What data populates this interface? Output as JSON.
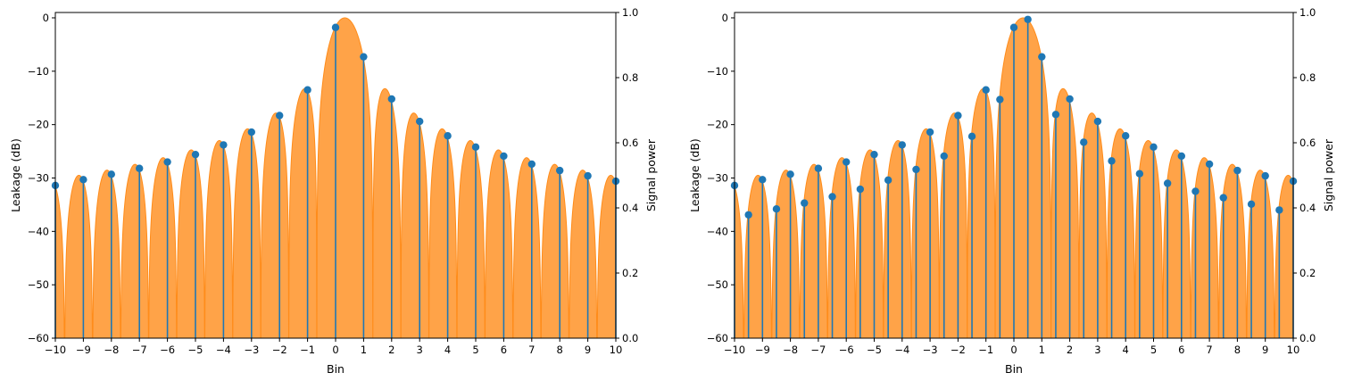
{
  "chart_data": [
    {
      "type": "line",
      "title": "",
      "xlabel": "Bin",
      "ylabel": "Leakage (dB)",
      "y2label": "Signal power",
      "xlim": [
        -10,
        10
      ],
      "ylim": [
        -60,
        1
      ],
      "y2lim": [
        0,
        1
      ],
      "xticks": [
        -10,
        -9,
        -8,
        -7,
        -6,
        -5,
        -4,
        -3,
        -2,
        -1,
        0,
        1,
        2,
        3,
        4,
        5,
        6,
        7,
        8,
        9,
        10
      ],
      "yticks": [
        0,
        -10,
        -20,
        -30,
        -40,
        -50,
        -60
      ],
      "y2ticks": [
        "0.0",
        "0.2",
        "0.4",
        "0.6",
        "0.8",
        "1.0"
      ],
      "grid": false,
      "colors": {
        "fill": "#ff8c1a",
        "stem": "#1f77b4"
      },
      "series": [
        {
          "type": "area",
          "x": "continuous spectral leakage curve, bins -10 to 10",
          "peak_bin": 0.33
        },
        {
          "type": "stem",
          "x": [
            -10,
            -9,
            -8,
            -7,
            -6,
            -5,
            -4,
            -3,
            -2,
            -1,
            0,
            1,
            2,
            3,
            4,
            5,
            6,
            7,
            8,
            9,
            10
          ],
          "y": [
            -31.4,
            -30.3,
            -29.3,
            -28.2,
            -27.0,
            -25.6,
            -23.8,
            -21.4,
            -18.3,
            -13.5,
            -1.8,
            -7.3,
            -15.2,
            -19.4,
            -22.1,
            -24.2,
            -25.9,
            -27.4,
            -28.6,
            -29.6,
            -30.6
          ]
        }
      ]
    },
    {
      "type": "line",
      "title": "",
      "xlabel": "Bin",
      "ylabel": "Leakage (dB)",
      "y2label": "Signal power",
      "xlim": [
        -10,
        10
      ],
      "ylim": [
        -60,
        1
      ],
      "y2lim": [
        0,
        1
      ],
      "xticks": [
        -10,
        -9,
        -8,
        -7,
        -6,
        -5,
        -4,
        -3,
        -2,
        -1,
        0,
        1,
        2,
        3,
        4,
        5,
        6,
        7,
        8,
        9,
        10
      ],
      "yticks": [
        0,
        -10,
        -20,
        -30,
        -40,
        -50,
        -60
      ],
      "y2ticks": [
        "0.0",
        "0.2",
        "0.4",
        "0.6",
        "0.8",
        "1.0"
      ],
      "grid": false,
      "colors": {
        "fill": "#ff8c1a",
        "stem": "#1f77b4"
      },
      "series": [
        {
          "type": "area",
          "x": "continuous spectral leakage curve, bins -10 to 10",
          "peak_bin": 0.33
        },
        {
          "type": "stem",
          "x": [
            -10,
            -9.5,
            -9,
            -8.5,
            -8,
            -7.5,
            -7,
            -6.5,
            -6,
            -5.5,
            -5,
            -4.5,
            -4,
            -3.5,
            -3,
            -2.5,
            -2,
            -1.5,
            -1,
            -0.5,
            0,
            0.5,
            1,
            1.5,
            2,
            2.5,
            3,
            3.5,
            4,
            4.5,
            5,
            5.5,
            6,
            6.5,
            7,
            7.5,
            8,
            8.5,
            9,
            9.5,
            10
          ],
          "y": [
            -31.4,
            -36.9,
            -30.3,
            -35.8,
            -29.3,
            -34.7,
            -28.2,
            -33.5,
            -27.0,
            -32.1,
            -25.6,
            -30.4,
            -23.8,
            -28.4,
            -21.4,
            -25.9,
            -18.3,
            -22.2,
            -13.5,
            -15.3,
            -1.8,
            -0.3,
            -7.3,
            -18.1,
            -15.2,
            -23.3,
            -19.4,
            -26.8,
            -22.1,
            -29.2,
            -24.2,
            -31.0,
            -25.9,
            -32.5,
            -27.4,
            -33.7,
            -28.6,
            -34.9,
            -29.6,
            -36.0,
            -30.6
          ]
        }
      ]
    }
  ]
}
